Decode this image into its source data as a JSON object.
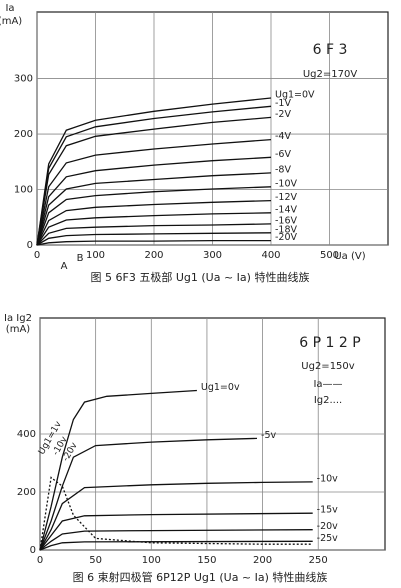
{
  "chart_data": [
    {
      "type": "line",
      "caption": "图 5  6F3 五极部 Ug1 (Ua ~ Ia) 特性曲线族",
      "y_label": "Ia",
      "y_unit": "(mA)",
      "x_label": "Ua (V)",
      "annotations": [
        "6 F 3",
        "Ug2=170V",
        "A",
        "B"
      ],
      "xlim": [
        0,
        600
      ],
      "xticks": [
        0,
        100,
        200,
        300,
        400,
        500
      ],
      "ylim": [
        0,
        420
      ],
      "yticks": [
        0,
        100,
        200,
        300
      ],
      "grid": true,
      "series": [
        {
          "name": "Ug1=0V",
          "color": "#111",
          "x": [
            0,
            20,
            50,
            100,
            200,
            300,
            400
          ],
          "values": [
            0,
            146,
            207,
            225,
            241,
            254,
            265
          ]
        },
        {
          "name": "-1V",
          "color": "#111",
          "x": [
            0,
            20,
            50,
            100,
            200,
            300,
            400
          ],
          "values": [
            0,
            138,
            195,
            213,
            228,
            240,
            250
          ]
        },
        {
          "name": "-2V",
          "color": "#111",
          "x": [
            0,
            20,
            50,
            100,
            200,
            300,
            400
          ],
          "values": [
            0,
            127,
            179,
            196,
            209,
            221,
            230
          ]
        },
        {
          "name": "-4V",
          "color": "#111",
          "x": [
            0,
            20,
            50,
            100,
            200,
            300,
            400
          ],
          "values": [
            0,
            105,
            148,
            162,
            173,
            182,
            190
          ]
        },
        {
          "name": "-6V",
          "color": "#111",
          "x": [
            0,
            20,
            50,
            100,
            200,
            300,
            400
          ],
          "values": [
            0,
            87,
            123,
            134,
            144,
            152,
            158
          ]
        },
        {
          "name": "-8V",
          "color": "#111",
          "x": [
            0,
            20,
            50,
            100,
            200,
            300,
            400
          ],
          "values": [
            0,
            72,
            101,
            111,
            118,
            125,
            130
          ]
        },
        {
          "name": "-10V",
          "color": "#111",
          "x": [
            0,
            20,
            50,
            100,
            200,
            300,
            400
          ],
          "values": [
            0,
            58,
            82,
            89,
            96,
            101,
            105
          ]
        },
        {
          "name": "-12V",
          "color": "#111",
          "x": [
            0,
            20,
            50,
            100,
            200,
            300,
            400
          ],
          "values": [
            0,
            44,
            62,
            68,
            73,
            77,
            80
          ]
        },
        {
          "name": "-14V",
          "color": "#111",
          "x": [
            0,
            20,
            50,
            100,
            200,
            300,
            400
          ],
          "values": [
            0,
            32,
            45,
            49,
            53,
            56,
            58
          ]
        },
        {
          "name": "-16V",
          "color": "#111",
          "x": [
            0,
            20,
            50,
            100,
            200,
            300,
            400
          ],
          "values": [
            0,
            21,
            30,
            32,
            35,
            36,
            38
          ]
        },
        {
          "name": "-18V",
          "color": "#111",
          "x": [
            0,
            20,
            50,
            100,
            200,
            300,
            400
          ],
          "values": [
            0,
            12,
            17,
            19,
            20,
            21,
            22
          ]
        },
        {
          "name": "-20V",
          "color": "#111",
          "x": [
            0,
            20,
            50,
            100,
            200,
            300,
            400
          ],
          "values": [
            0,
            4,
            6,
            7,
            7,
            8,
            8
          ]
        }
      ]
    },
    {
      "type": "line",
      "caption": "图 6  束射四极管 6P12P  Ug1 (Ua ~ Ia) 特性曲线族",
      "y_label": "Ia Ig2",
      "y_unit": "(mA)",
      "annotations": [
        "6 P 1 2 P",
        "Ug2=150v",
        "Ia——",
        "Ig2....",
        "Ug1=1v",
        "-10v",
        "-20v"
      ],
      "xlim": [
        0,
        310
      ],
      "xticks": [
        0,
        50,
        100,
        150,
        200,
        250
      ],
      "ylim": [
        0,
        800
      ],
      "yticks": [
        0,
        200,
        400
      ],
      "grid": true,
      "series": [
        {
          "name": "Ug1=0v",
          "color": "#111",
          "x": [
            0,
            10,
            20,
            30,
            40,
            60,
            100,
            141
          ],
          "values": [
            0,
            150,
            320,
            450,
            510,
            530,
            540,
            550
          ]
        },
        {
          "name": "-5v",
          "color": "#111",
          "x": [
            0,
            10,
            20,
            30,
            50,
            100,
            150,
            195
          ],
          "values": [
            0,
            100,
            220,
            320,
            360,
            372,
            380,
            385
          ]
        },
        {
          "name": "-10v",
          "color": "#111",
          "x": [
            0,
            10,
            20,
            40,
            100,
            150,
            200,
            245
          ],
          "values": [
            0,
            70,
            160,
            215,
            225,
            230,
            233,
            235
          ]
        },
        {
          "name": "-15v",
          "color": "#111",
          "x": [
            0,
            10,
            20,
            40,
            100,
            245
          ],
          "values": [
            0,
            50,
            100,
            118,
            122,
            127
          ]
        },
        {
          "name": "-20v",
          "color": "#111",
          "x": [
            0,
            10,
            20,
            40,
            100,
            245
          ],
          "values": [
            0,
            30,
            55,
            65,
            67,
            70
          ]
        },
        {
          "name": "-25v",
          "color": "#111",
          "x": [
            0,
            10,
            20,
            40,
            245
          ],
          "values": [
            0,
            15,
            25,
            28,
            30
          ]
        },
        {
          "color": "#111",
          "dashed": true,
          "x": [
            0,
            10,
            20,
            30,
            50,
            100,
            200,
            245
          ],
          "values": [
            0,
            250,
            220,
            120,
            40,
            25,
            20,
            20
          ]
        }
      ]
    }
  ]
}
